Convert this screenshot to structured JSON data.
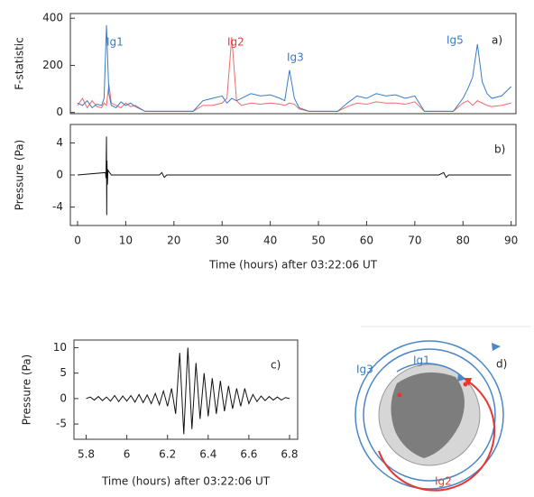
{
  "chart_data": [
    {
      "type": "line",
      "label": "a)",
      "ylabel": "F-statistic",
      "annotations": [
        "Ig1",
        "Ig2",
        "Ig3",
        "Ig5"
      ],
      "xlim": [
        -1.5,
        91
      ],
      "ylim": [
        -5,
        420
      ],
      "yticks": [
        0,
        200,
        400
      ],
      "x": [
        0,
        1,
        2,
        3,
        4,
        5,
        5.5,
        6,
        6.5,
        7,
        8,
        9,
        10,
        11,
        12,
        14,
        16,
        18,
        20,
        22,
        24,
        26,
        28,
        30,
        31,
        32,
        33,
        34,
        36,
        38,
        40,
        42,
        43,
        44,
        45,
        46,
        48,
        50,
        52,
        54,
        56,
        58,
        60,
        62,
        64,
        66,
        68,
        70,
        72,
        74,
        76,
        78,
        80,
        81,
        82,
        83,
        84,
        85,
        86,
        88,
        90
      ],
      "series": [
        {
          "color": "#ef6a6a",
          "values": [
            30,
            60,
            20,
            50,
            25,
            20,
            40,
            30,
            120,
            40,
            30,
            20,
            40,
            25,
            30,
            5,
            5,
            5,
            5,
            5,
            5,
            30,
            30,
            40,
            60,
            320,
            50,
            30,
            40,
            35,
            40,
            35,
            30,
            40,
            35,
            15,
            5,
            5,
            5,
            5,
            25,
            40,
            35,
            45,
            40,
            40,
            35,
            45,
            5,
            5,
            5,
            5,
            40,
            50,
            30,
            50,
            40,
            30,
            25,
            30,
            40
          ]
        },
        {
          "color": "#3a7cc4",
          "values": [
            40,
            30,
            50,
            20,
            35,
            30,
            60,
            370,
            80,
            30,
            20,
            45,
            30,
            40,
            25,
            5,
            5,
            5,
            5,
            5,
            5,
            50,
            60,
            70,
            40,
            60,
            50,
            60,
            80,
            70,
            75,
            60,
            50,
            180,
            60,
            20,
            5,
            5,
            5,
            5,
            40,
            70,
            60,
            80,
            70,
            75,
            60,
            70,
            5,
            5,
            5,
            5,
            60,
            100,
            150,
            290,
            130,
            80,
            60,
            70,
            110
          ]
        }
      ]
    },
    {
      "type": "line",
      "label": "b)",
      "ylabel": "Pressure (Pa)",
      "xlabel": "Time (hours) after 03:22:06 UT",
      "xlim": [
        -1.5,
        91
      ],
      "xticks": [
        0,
        10,
        20,
        30,
        40,
        50,
        60,
        70,
        80,
        90
      ],
      "ylim": [
        -6.3,
        6.3
      ],
      "yticks": [
        -4,
        0,
        4
      ],
      "x": [
        0,
        5.8,
        5.9,
        6,
        6.05,
        6.1,
        6.2,
        6.3,
        7,
        17,
        17.5,
        18,
        18.5,
        30,
        75,
        76,
        76.5,
        77,
        90
      ],
      "series": [
        {
          "color": "#111111",
          "values": [
            0,
            0.3,
            -0.4,
            4.8,
            -5,
            1.8,
            -1.2,
            0.6,
            0,
            0,
            0.3,
            -0.3,
            0,
            0,
            0,
            0.3,
            -0.3,
            0,
            0
          ]
        }
      ]
    },
    {
      "type": "line",
      "label": "c)",
      "ylabel": "Pressure (Pa)",
      "xlabel": "Time (hours) after 03:22:06 UT",
      "xlim": [
        5.74,
        6.84
      ],
      "xticks": [
        5.8,
        6,
        6.2,
        6.4,
        6.6,
        6.8
      ],
      "ylim": [
        -8,
        11.5
      ],
      "yticks": [
        -5,
        0,
        5,
        10
      ],
      "x": [
        5.8,
        5.82,
        5.84,
        5.86,
        5.88,
        5.9,
        5.92,
        5.94,
        5.96,
        5.98,
        6,
        6.02,
        6.04,
        6.06,
        6.08,
        6.1,
        6.12,
        6.14,
        6.16,
        6.18,
        6.2,
        6.22,
        6.24,
        6.26,
        6.28,
        6.3,
        6.32,
        6.34,
        6.36,
        6.38,
        6.4,
        6.42,
        6.44,
        6.46,
        6.48,
        6.5,
        6.52,
        6.54,
        6.56,
        6.58,
        6.6,
        6.62,
        6.64,
        6.66,
        6.68,
        6.7,
        6.72,
        6.74,
        6.76,
        6.78,
        6.8
      ],
      "series": [
        {
          "color": "#111111",
          "values": [
            0,
            0.3,
            -0.3,
            0.4,
            -0.4,
            0.3,
            -0.5,
            0.6,
            -0.6,
            0.5,
            -0.5,
            0.6,
            -0.7,
            0.8,
            -0.8,
            0.7,
            -1,
            1,
            -1.2,
            1.5,
            -1.5,
            2,
            -3,
            9,
            -7,
            10,
            -6,
            7,
            -4,
            5,
            -3.5,
            4,
            -3,
            3.5,
            -2.5,
            2.5,
            -2,
            2,
            -1.5,
            2,
            -1,
            0.8,
            -0.6,
            0.5,
            -0.4,
            0.4,
            -0.3,
            0.3,
            -0.3,
            0.2,
            0
          ]
        }
      ]
    }
  ],
  "diagram": {
    "label": "d)",
    "labels": [
      "Ig3",
      "Ig1",
      "Ig2"
    ]
  }
}
